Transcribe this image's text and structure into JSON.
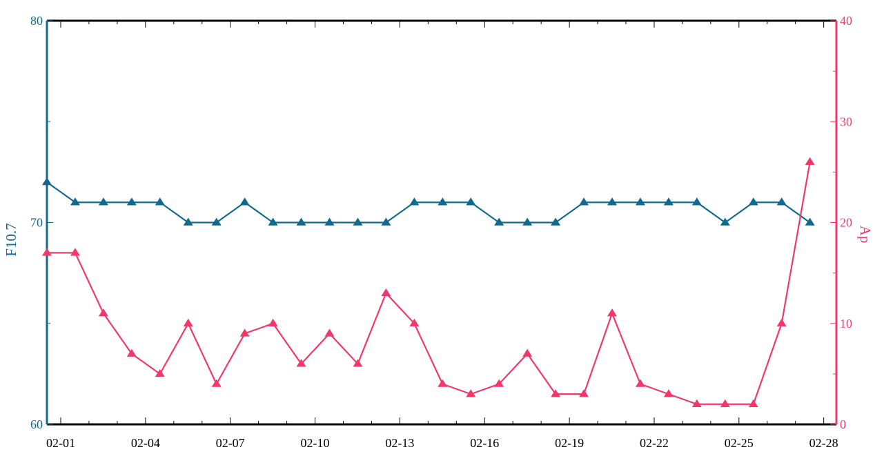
{
  "chart_data": {
    "type": "line",
    "x_ticks": [
      "02-01",
      "02-04",
      "02-07",
      "02-10",
      "02-13",
      "02-16",
      "02-19",
      "02-22",
      "02-25",
      "02-28"
    ],
    "left_axis": {
      "label": "F10.7",
      "ylim": [
        60,
        80
      ],
      "ticks": [
        "60",
        "70",
        "80"
      ],
      "color": "#12698f"
    },
    "right_axis": {
      "label": "Ap",
      "ylim": [
        0,
        40
      ],
      "ticks": [
        "0",
        "10",
        "20",
        "30",
        "40"
      ],
      "color": "#f2386b"
    },
    "series": [
      {
        "axis": "left",
        "color": "#12698f",
        "marker": "triangle",
        "x": [
          "02-01",
          "02-02",
          "02-03",
          "02-04",
          "02-05",
          "02-06",
          "02-07",
          "02-08",
          "02-09",
          "02-10",
          "02-11",
          "02-12",
          "02-13",
          "02-14",
          "02-15",
          "02-16",
          "02-17",
          "02-18",
          "02-19",
          "02-20",
          "02-21",
          "02-22",
          "02-23",
          "02-24",
          "02-25",
          "02-26",
          "02-27",
          "02-28"
        ],
        "values": [
          72,
          71,
          71,
          71,
          71,
          70,
          70,
          71,
          70,
          70,
          70,
          70,
          70,
          71,
          71,
          71,
          70,
          70,
          70,
          71,
          71,
          71,
          71,
          71,
          70,
          71,
          71,
          70
        ]
      },
      {
        "axis": "right",
        "color": "#f2386b",
        "marker": "triangle",
        "x": [
          "02-01",
          "02-02",
          "02-03",
          "02-04",
          "02-05",
          "02-06",
          "02-07",
          "02-08",
          "02-09",
          "02-10",
          "02-11",
          "02-12",
          "02-13",
          "02-14",
          "02-15",
          "02-16",
          "02-17",
          "02-18",
          "02-19",
          "02-20",
          "02-21",
          "02-22",
          "02-23",
          "02-24",
          "02-25",
          "02-26",
          "02-27",
          "02-28"
        ],
        "values": [
          17,
          17,
          11,
          7,
          5,
          10,
          4,
          9,
          10,
          6,
          9,
          6,
          13,
          10,
          4,
          3,
          4,
          7,
          3,
          3,
          11,
          4,
          3,
          2,
          2,
          2,
          10,
          26
        ]
      }
    ],
    "grid": false
  }
}
